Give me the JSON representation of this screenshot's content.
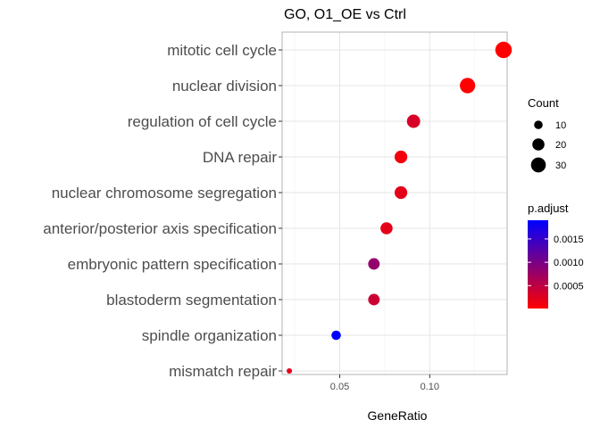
{
  "chart_data": {
    "type": "scatter",
    "title": "GO, O1_OE vs Ctrl",
    "xlabel": "GeneRatio",
    "ylabel": "",
    "xlim": [
      0.018,
      0.143
    ],
    "x_ticks": [
      0.05,
      0.1
    ],
    "x_tick_labels": [
      "0.05",
      "0.10"
    ],
    "grid": true,
    "categories": [
      "mitotic cell cycle",
      "nuclear division",
      "regulation of cell cycle",
      "DNA repair",
      "nuclear chromosome segregation",
      "anterior/posterior axis specification",
      "embryonic pattern specification",
      "blastoderm segmentation",
      "spindle organization",
      "mismatch repair"
    ],
    "points": [
      {
        "term": "mitotic cell cycle",
        "gene_ratio": 0.141,
        "count": 37,
        "p_adjust": 1e-05
      },
      {
        "term": "nuclear division",
        "gene_ratio": 0.121,
        "count": 32,
        "p_adjust": 2e-05
      },
      {
        "term": "regulation of cell cycle",
        "gene_ratio": 0.091,
        "count": 24,
        "p_adjust": 0.0003
      },
      {
        "term": "DNA repair",
        "gene_ratio": 0.084,
        "count": 22,
        "p_adjust": 0.0001
      },
      {
        "term": "nuclear chromosome segregation",
        "gene_ratio": 0.084,
        "count": 22,
        "p_adjust": 0.0002
      },
      {
        "term": "anterior/posterior axis specification",
        "gene_ratio": 0.076,
        "count": 20,
        "p_adjust": 0.0002
      },
      {
        "term": "embryonic pattern specification",
        "gene_ratio": 0.069,
        "count": 18,
        "p_adjust": 0.0008
      },
      {
        "term": "blastoderm segmentation",
        "gene_ratio": 0.069,
        "count": 18,
        "p_adjust": 0.0004
      },
      {
        "term": "spindle organization",
        "gene_ratio": 0.048,
        "count": 12,
        "p_adjust": 0.0019
      },
      {
        "term": "mismatch repair",
        "gene_ratio": 0.022,
        "count": 4,
        "p_adjust": 0.0002
      }
    ],
    "size_legend": {
      "title": "Count",
      "values": [
        10,
        20,
        30
      ],
      "labels": [
        "10",
        "20",
        "30"
      ]
    },
    "color_legend": {
      "title": "p.adjust",
      "min": 1e-05,
      "max": 0.0019,
      "ticks": [
        0.0005,
        0.001,
        0.0015
      ],
      "tick_labels": [
        "0.0005",
        "0.0010",
        "0.0015"
      ],
      "low_color": "#ff0000",
      "high_color": "#0000ff"
    },
    "legend_position": "right"
  },
  "colors": {
    "panel_border": "#b3b3b3",
    "grid_major": "#e6e6e6",
    "grid_minor": "#f2f2f2"
  }
}
